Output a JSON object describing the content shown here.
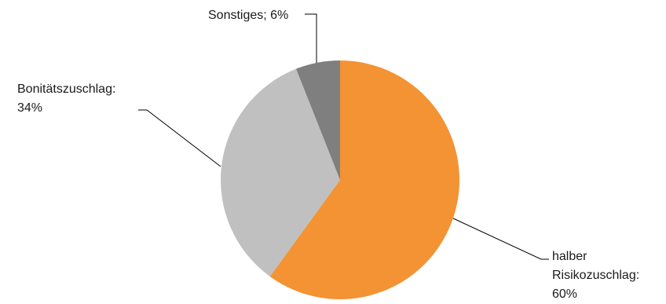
{
  "chart_data": {
    "type": "pie",
    "title": "",
    "slices": [
      {
        "category": "halber Risikozuschlag",
        "value": 60,
        "label_lines": [
          "halber",
          "Risikozuschlag:",
          "60%"
        ],
        "color": "#f39333"
      },
      {
        "category": "Bonitätszuschlag",
        "value": 34,
        "label_lines": [
          "Bonitätszuschlag:",
          "34%"
        ],
        "color": "#c0c0c0"
      },
      {
        "category": "Sonstiges",
        "value": 6,
        "label_lines": [
          "Sonstiges; 6%"
        ],
        "color": "#7f7f7f"
      }
    ],
    "start": "top",
    "direction": "clockwise",
    "legend": "none",
    "data_labels": "outside with leader lines"
  }
}
